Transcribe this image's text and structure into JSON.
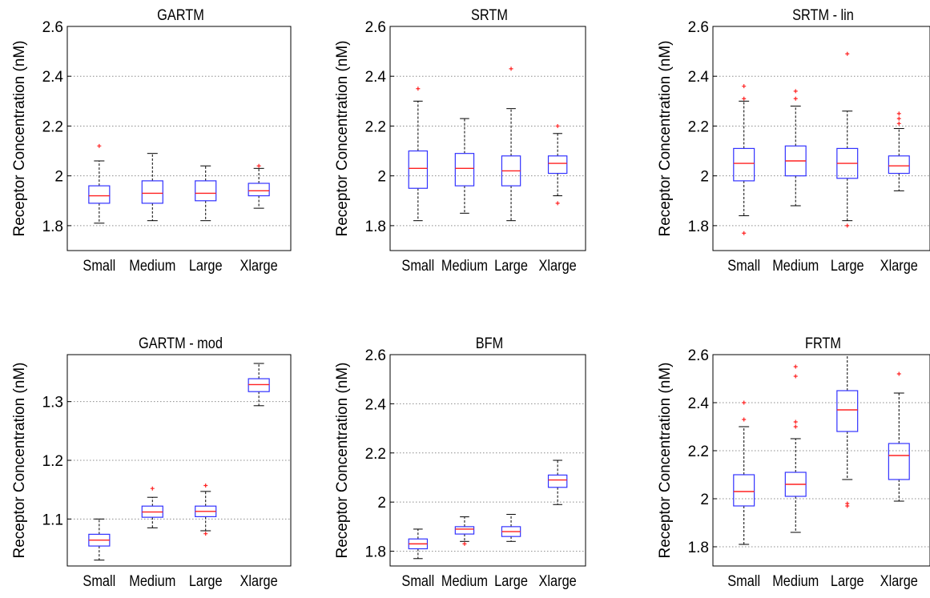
{
  "chart_data": [
    {
      "type": "box",
      "title": "GARTM",
      "ylabel": "Receptor Concentration (nM)",
      "ylim": [
        1.7,
        2.6
      ],
      "yticks": [
        1.8,
        2,
        2.2,
        2.4,
        2.6
      ],
      "ytick_labels": [
        "1.8",
        "2",
        "2.2",
        "2.4",
        "2.6"
      ],
      "grid": "horizontal dotted",
      "categories": [
        "Small",
        "Medium",
        "Large",
        "Xlarge"
      ],
      "boxes": [
        {
          "whisker_low": 1.81,
          "q1": 1.89,
          "median": 1.92,
          "q3": 1.96,
          "whisker_high": 2.06,
          "outliers": [
            2.12
          ]
        },
        {
          "whisker_low": 1.82,
          "q1": 1.89,
          "median": 1.93,
          "q3": 1.98,
          "whisker_high": 2.09,
          "outliers": []
        },
        {
          "whisker_low": 1.82,
          "q1": 1.9,
          "median": 1.93,
          "q3": 1.98,
          "whisker_high": 2.04,
          "outliers": []
        },
        {
          "whisker_low": 1.87,
          "q1": 1.92,
          "median": 1.94,
          "q3": 1.97,
          "whisker_high": 2.03,
          "outliers": [
            2.04
          ]
        }
      ]
    },
    {
      "type": "box",
      "title": "SRTM",
      "ylabel": "Receptor Concentration (nM)",
      "ylim": [
        1.7,
        2.6
      ],
      "yticks": [
        1.8,
        2,
        2.2,
        2.4,
        2.6
      ],
      "ytick_labels": [
        "1.8",
        "2",
        "2.2",
        "2.4",
        "2.6"
      ],
      "grid": "horizontal dotted",
      "categories": [
        "Small",
        "Medium",
        "Large",
        "Xlarge"
      ],
      "boxes": [
        {
          "whisker_low": 1.82,
          "q1": 1.95,
          "median": 2.03,
          "q3": 2.1,
          "whisker_high": 2.3,
          "outliers": [
            2.35
          ]
        },
        {
          "whisker_low": 1.85,
          "q1": 1.96,
          "median": 2.03,
          "q3": 2.09,
          "whisker_high": 2.23,
          "outliers": []
        },
        {
          "whisker_low": 1.82,
          "q1": 1.96,
          "median": 2.02,
          "q3": 2.08,
          "whisker_high": 2.27,
          "outliers": [
            2.43
          ]
        },
        {
          "whisker_low": 1.92,
          "q1": 2.01,
          "median": 2.05,
          "q3": 2.08,
          "whisker_high": 2.17,
          "outliers": [
            2.2,
            1.89
          ]
        }
      ]
    },
    {
      "type": "box",
      "title": "SRTM - lin",
      "ylabel": "Receptor Concentration (nM)",
      "ylim": [
        1.7,
        2.6
      ],
      "yticks": [
        1.8,
        2,
        2.2,
        2.4,
        2.6
      ],
      "ytick_labels": [
        "1.8",
        "2",
        "2.2",
        "2.4",
        "2.6"
      ],
      "grid": "horizontal dotted",
      "categories": [
        "Small",
        "Medium",
        "Large",
        "Xlarge"
      ],
      "boxes": [
        {
          "whisker_low": 1.84,
          "q1": 1.98,
          "median": 2.05,
          "q3": 2.11,
          "whisker_high": 2.3,
          "outliers": [
            2.36,
            2.31,
            1.77
          ]
        },
        {
          "whisker_low": 1.88,
          "q1": 2.0,
          "median": 2.06,
          "q3": 2.12,
          "whisker_high": 2.28,
          "outliers": [
            2.34,
            2.31
          ]
        },
        {
          "whisker_low": 1.82,
          "q1": 1.99,
          "median": 2.05,
          "q3": 2.11,
          "whisker_high": 2.26,
          "outliers": [
            2.49,
            1.8
          ]
        },
        {
          "whisker_low": 1.94,
          "q1": 2.01,
          "median": 2.04,
          "q3": 2.08,
          "whisker_high": 2.19,
          "outliers": [
            2.25,
            2.23,
            2.21
          ]
        }
      ]
    },
    {
      "type": "box",
      "title": "GARTM - mod",
      "ylabel": "Receptor Concentration (nM)",
      "ylim": [
        1.02,
        1.38
      ],
      "yticks": [
        1.1,
        1.2,
        1.3
      ],
      "ytick_labels": [
        "1.1",
        "1.2",
        "1.3"
      ],
      "grid": "horizontal dotted",
      "categories": [
        "Small",
        "Medium",
        "Large",
        "Xlarge"
      ],
      "boxes": [
        {
          "whisker_low": 1.03,
          "q1": 1.054,
          "median": 1.064,
          "q3": 1.074,
          "whisker_high": 1.1,
          "outliers": []
        },
        {
          "whisker_low": 1.085,
          "q1": 1.103,
          "median": 1.112,
          "q3": 1.122,
          "whisker_high": 1.137,
          "outliers": [
            1.152
          ]
        },
        {
          "whisker_low": 1.08,
          "q1": 1.104,
          "median": 1.113,
          "q3": 1.122,
          "whisker_high": 1.147,
          "outliers": [
            1.157,
            1.075
          ]
        },
        {
          "whisker_low": 1.293,
          "q1": 1.317,
          "median": 1.329,
          "q3": 1.339,
          "whisker_high": 1.365,
          "outliers": []
        }
      ]
    },
    {
      "type": "box",
      "title": "BFM",
      "ylabel": "Receptor Concentration (nM)",
      "ylim": [
        1.74,
        2.6
      ],
      "yticks": [
        1.8,
        2,
        2.2,
        2.4,
        2.6
      ],
      "ytick_labels": [
        "1.8",
        "2",
        "2.2",
        "2.4",
        "2.6"
      ],
      "grid": "horizontal dotted",
      "categories": [
        "Small",
        "Medium",
        "Large",
        "Xlarge"
      ],
      "boxes": [
        {
          "whisker_low": 1.77,
          "q1": 1.81,
          "median": 1.83,
          "q3": 1.85,
          "whisker_high": 1.89,
          "outliers": []
        },
        {
          "whisker_low": 1.84,
          "q1": 1.87,
          "median": 1.89,
          "q3": 1.9,
          "whisker_high": 1.94,
          "outliers": [
            1.83
          ]
        },
        {
          "whisker_low": 1.84,
          "q1": 1.86,
          "median": 1.88,
          "q3": 1.9,
          "whisker_high": 1.95,
          "outliers": []
        },
        {
          "whisker_low": 1.99,
          "q1": 2.06,
          "median": 2.09,
          "q3": 2.11,
          "whisker_high": 2.17,
          "outliers": []
        }
      ]
    },
    {
      "type": "box",
      "title": "FRTM",
      "ylabel": "Receptor Concentration (nM)",
      "ylim": [
        1.72,
        2.6
      ],
      "yticks": [
        1.8,
        2,
        2.2,
        2.4,
        2.6
      ],
      "ytick_labels": [
        "1.8",
        "2",
        "2.2",
        "2.4",
        "2.6"
      ],
      "grid": "horizontal dotted",
      "categories": [
        "Small",
        "Medium",
        "Large",
        "Xlarge"
      ],
      "boxes": [
        {
          "whisker_low": 1.81,
          "q1": 1.97,
          "median": 2.03,
          "q3": 2.1,
          "whisker_high": 2.3,
          "outliers": [
            2.4,
            2.33
          ]
        },
        {
          "whisker_low": 1.86,
          "q1": 2.01,
          "median": 2.06,
          "q3": 2.11,
          "whisker_high": 2.25,
          "outliers": [
            2.55,
            2.51,
            2.32,
            2.3
          ]
        },
        {
          "whisker_low": 2.08,
          "q1": 2.28,
          "median": 2.37,
          "q3": 2.45,
          "whisker_high": 2.6,
          "outliers": [
            1.98,
            1.97
          ]
        },
        {
          "whisker_low": 1.99,
          "q1": 2.08,
          "median": 2.18,
          "q3": 2.23,
          "whisker_high": 2.44,
          "outliers": [
            2.52
          ]
        }
      ]
    }
  ]
}
